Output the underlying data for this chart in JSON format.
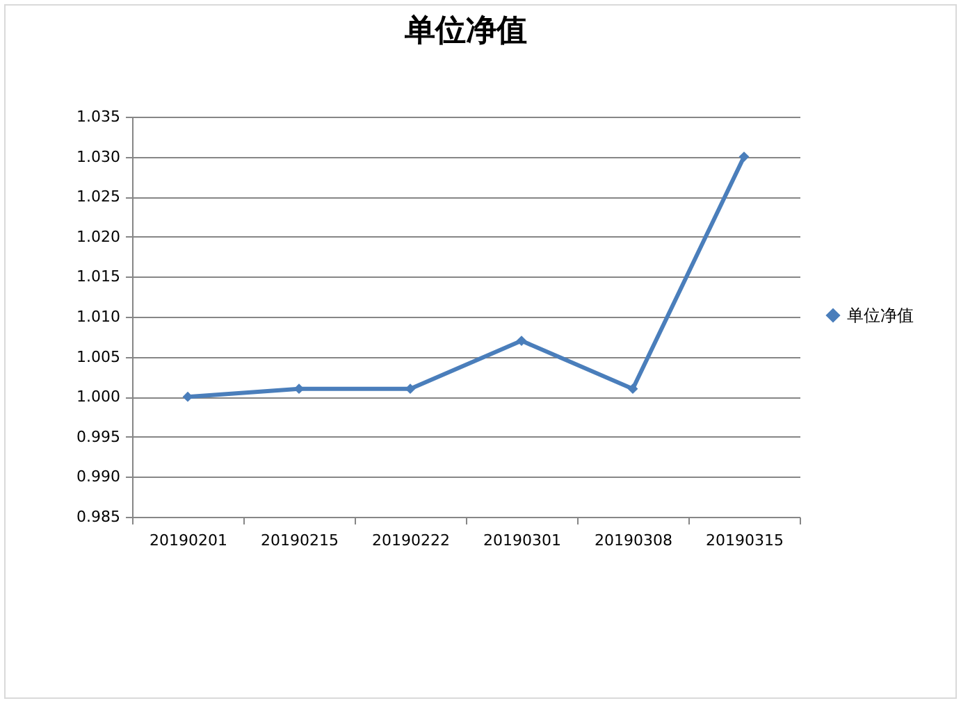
{
  "chart_data": {
    "type": "line",
    "title": "单位净值",
    "categories": [
      "20190201",
      "20190215",
      "20190222",
      "20190301",
      "20190308",
      "20190315"
    ],
    "series": [
      {
        "name": "单位净值",
        "color": "#4a7ebb",
        "values": [
          1.0,
          1.001,
          1.001,
          1.007,
          1.001,
          1.03
        ]
      }
    ],
    "ylim": [
      0.985,
      1.035
    ],
    "yticks": [
      0.985,
      {
        "value": 0.99,
        "label": "0.990"
      },
      0.995,
      {
        "value": 1,
        "label": "1.000"
      },
      1.005,
      {
        "value": 1.01,
        "label": "1.010"
      },
      1.015,
      {
        "value": 1.02,
        "label": "1.020"
      },
      1.025,
      {
        "value": 1.03,
        "label": "1.030"
      },
      1.035
    ],
    "grid": "y",
    "legend": "right",
    "marker": "diamond",
    "line_style": "solid"
  }
}
